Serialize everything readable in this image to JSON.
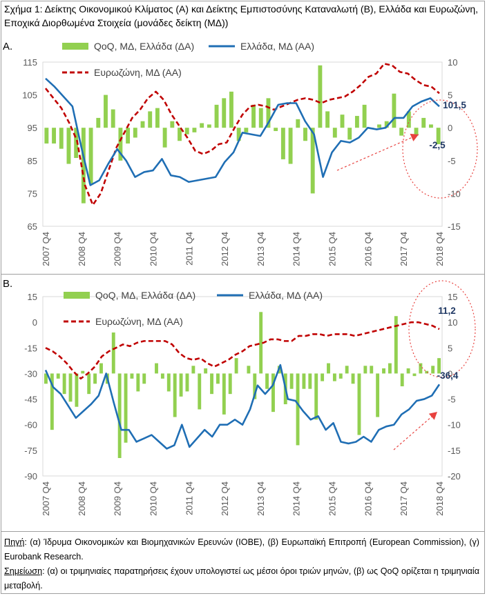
{
  "title": "Σχήμα 1: Δείκτης Οικονομικού Κλίματος (Α) και Δείκτης Εμπιστοσύνης Καταναλωτή (Β), Ελλάδα και Ευρωζώνη, Εποχικά Διορθωμένα Στοιχεία (μονάδες δείκτη (ΜΔ))",
  "footer": {
    "source_label": "Πηγή",
    "source_text": ": (α) Ίδρυμα Οικονομικών και Βιομηχανικών Ερευνών (ΙΟΒΕ), (β) Ευρωπαϊκή Επιτροπή (European Commission), (γ) Eurobank Research.",
    "note_label": "Σημείωση",
    "note_text": ": (α) οι τριμηνιαίες παρατηρήσεις έχουν υπολογιστεί ως μέσοι όροι τριών μηνών, (β) ως QoQ ορίζεται η τριμηνιαία μεταβολή."
  },
  "colors": {
    "bar": "#92d050",
    "greece": "#1f6eb4",
    "eurozone": "#c00000",
    "annotation": "#1f3864",
    "arrow": "#e8423f"
  },
  "chart_data": [
    {
      "panel_label": "A.",
      "type": "bar+line",
      "x_ticks": [
        "2007 Q4",
        "2008 Q4",
        "2009 Q4",
        "2010 Q4",
        "2011 Q4",
        "2012 Q4",
        "2013 Q4",
        "2014 Q4",
        "2015 Q4",
        "2016 Q4",
        "2017 Q4",
        "2018 Q4"
      ],
      "left_axis": {
        "ticks": [
          65,
          75,
          85,
          95,
          105,
          115
        ],
        "ylim": [
          65,
          115
        ]
      },
      "right_axis": {
        "ticks": [
          -15,
          -10,
          -5,
          0,
          5,
          10
        ],
        "ylim": [
          -15,
          10
        ]
      },
      "legend": {
        "bar": "QoQ, ΜΔ, Ελλάδα (ΔΑ)",
        "greece": "Ελλάδα, ΜΔ (ΑΑ)",
        "eurozone": "Ευρωζώνη, ΜΔ (ΑΑ)"
      },
      "annotations": [
        {
          "text": "101,5"
        },
        {
          "text": "-2,5"
        }
      ],
      "series": [
        {
          "name": "QoQ, ΜΔ, Ελλάδα (ΔΑ)",
          "kind": "bar",
          "axis": "right",
          "values": [
            -2.4,
            -2.4,
            -3.2,
            -5.5,
            -4.6,
            -11.5,
            -8.5,
            1.5,
            5,
            2.8,
            -5,
            -2.4,
            -1.5,
            1,
            2.5,
            3,
            -3,
            1,
            -2,
            -1,
            -0.7,
            0.7,
            0.5,
            3.5,
            4.5,
            5.5,
            -2,
            -0.7,
            3.5,
            3,
            4.5,
            -0.5,
            -4.8,
            -5.5,
            1.3,
            -2,
            -10,
            9.5,
            2.5,
            -1.5,
            2,
            -1.8,
            1.8,
            3.5,
            -0.2,
            0.5,
            1,
            5.2,
            -1.2,
            2.5,
            -1.2,
            1.5,
            0.5,
            -2.5
          ]
        },
        {
          "name": "Ελλάδα, ΜΔ (ΑΑ)",
          "kind": "line",
          "axis": "left",
          "values": [
            110,
            107.5,
            104.5,
            101.5,
            89,
            77.5,
            79,
            84,
            88.5,
            85,
            80,
            81.5,
            82,
            85.5,
            80.5,
            80,
            78.5,
            79,
            79.5,
            80,
            84.5,
            87.5,
            93.5,
            93,
            92.5,
            97,
            102,
            102.5,
            102.5,
            97,
            93,
            80,
            87.5,
            91,
            90.5,
            92,
            95,
            94.5,
            95,
            98,
            98,
            101.5,
            103,
            104,
            101.5
          ]
        },
        {
          "name": "Ευρωζώνη, ΜΔ (ΑΑ)",
          "kind": "line",
          "axis": "left",
          "values": [
            107,
            104,
            101,
            96.5,
            91,
            77.5,
            71.5,
            75,
            82,
            89,
            93.5,
            98,
            100.5,
            104,
            106,
            103.5,
            99,
            95.5,
            92,
            88,
            87,
            88,
            90,
            90.5,
            95,
            99,
            101.5,
            102,
            101.5,
            100.5,
            101.5,
            102.5,
            103.5,
            104,
            103.5,
            102.5,
            103.5,
            104,
            104.5,
            106,
            108,
            110.5,
            111.5,
            114.5,
            114,
            112,
            111.5,
            109.5,
            108,
            107.5,
            105.5
          ]
        }
      ]
    },
    {
      "panel_label": "B.",
      "type": "bar+line",
      "x_ticks": [
        "2007 Q4",
        "2008 Q4",
        "2009 Q4",
        "2010 Q4",
        "2011 Q4",
        "2012 Q4",
        "2013 Q4",
        "2014 Q4",
        "2015 Q4",
        "2016 Q4",
        "2017 Q4",
        "2018 Q4"
      ],
      "left_axis": {
        "ticks": [
          -90,
          -75,
          -60,
          -45,
          -30,
          -15,
          0,
          15
        ],
        "ylim": [
          -90,
          15
        ]
      },
      "right_axis": {
        "ticks": [
          -20,
          -15,
          -10,
          -5,
          0,
          5,
          10,
          15
        ],
        "ylim": [
          -20,
          15
        ]
      },
      "legend": {
        "bar": "QoQ, ΜΔ, Ελλάδα (ΔΑ)",
        "greece": "Ελλάδα, ΜΔ (ΑΑ)",
        "eurozone": "Ευρωζώνη, ΜΔ (ΑΑ)"
      },
      "annotations": [
        {
          "text": "11,2"
        },
        {
          "text": "-36,4"
        }
      ],
      "series": [
        {
          "name": "QoQ, ΜΔ, Ελλάδα (ΔΑ)",
          "kind": "bar",
          "axis": "right",
          "values": [
            -2,
            -11,
            -1,
            -4,
            -5.5,
            -6.5,
            0.5,
            -4,
            -2,
            2,
            -2,
            8,
            -16.5,
            -13.5,
            -1,
            -3.5,
            -2,
            0,
            2,
            -1,
            -3.5,
            -8.5,
            -4.5,
            -3.5,
            1.5,
            -7,
            1,
            -4,
            -2,
            -8,
            -4,
            3,
            0,
            1.5,
            -5,
            12,
            -3,
            -7.5,
            1.5,
            -6,
            -3,
            -14,
            -3,
            -3,
            -9,
            -1.5,
            2,
            -1.5,
            -1,
            1.5,
            -2,
            -12,
            1.5,
            1.5,
            -8.5,
            1,
            2,
            11.2,
            -2.5,
            1,
            -0.5,
            2,
            0.5,
            1.5,
            3
          ]
        },
        {
          "name": "Ελλάδα, ΜΔ (ΑΑ)",
          "kind": "line",
          "axis": "left",
          "values": [
            -28,
            -38,
            -42,
            -49,
            -56,
            -52,
            -48,
            -43,
            -30,
            -47,
            -63,
            -63,
            -70,
            -68,
            -66,
            -70,
            -74,
            -72,
            -60,
            -73,
            -68,
            -63,
            -67,
            -60,
            -60,
            -57,
            -60,
            -51,
            -37,
            -42,
            -37,
            -25,
            -45,
            -46,
            -52,
            -57,
            -55,
            -63,
            -59,
            -70,
            -71,
            -70,
            -67,
            -70,
            -63,
            -61,
            -60,
            -54,
            -51,
            -46,
            -45,
            -43,
            -36.4
          ]
        },
        {
          "name": "Ευρωζώνη, ΜΔ (ΑΑ)",
          "kind": "line",
          "axis": "left",
          "values": [
            -15,
            -17,
            -20,
            -24,
            -29,
            -33,
            -30,
            -26,
            -20,
            -17,
            -15,
            -13,
            -14,
            -12,
            -11,
            -11,
            -11,
            -11,
            -13,
            -18,
            -21,
            -22,
            -21,
            -24,
            -26,
            -24,
            -22,
            -19,
            -17,
            -14,
            -13,
            -12,
            -10,
            -10,
            -11,
            -11,
            -8,
            -8,
            -7,
            -7,
            -8,
            -7,
            -7,
            -7,
            -8,
            -7,
            -6,
            -5,
            -4,
            -3,
            -2,
            -1,
            0,
            0,
            -1,
            -2,
            -4
          ]
        }
      ]
    }
  ]
}
